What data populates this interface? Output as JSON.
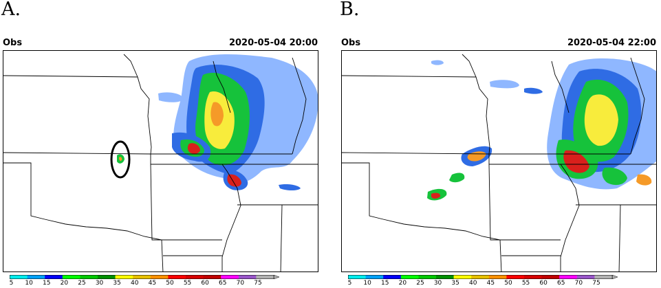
{
  "panels": [
    {
      "letter": "A.",
      "source": "Obs",
      "timestamp": "2020-05-04 20:00"
    },
    {
      "letter": "B.",
      "source": "Obs",
      "timestamp": "2020-05-04 22:00"
    }
  ],
  "colorbar": {
    "levels": [
      "5",
      "10",
      "15",
      "20",
      "25",
      "30",
      "35",
      "40",
      "45",
      "50",
      "55",
      "60",
      "65",
      "70",
      "75"
    ],
    "colors": [
      "#00ecec",
      "#01a0f6",
      "#0000f6",
      "#00ff00",
      "#00c800",
      "#009000",
      "#ffff00",
      "#e7c000",
      "#ff9000",
      "#ff0000",
      "#d60000",
      "#c00000",
      "#ff00ff",
      "#9955c9",
      "#b0b0b0"
    ]
  },
  "colors": {
    "light_blue": "#8fb7ff",
    "blue": "#2f6ce4",
    "green": "#16c23b",
    "dark_green": "#0a8b21",
    "yellow": "#f8ec3c",
    "orange": "#f59a28",
    "red": "#d9201c"
  }
}
